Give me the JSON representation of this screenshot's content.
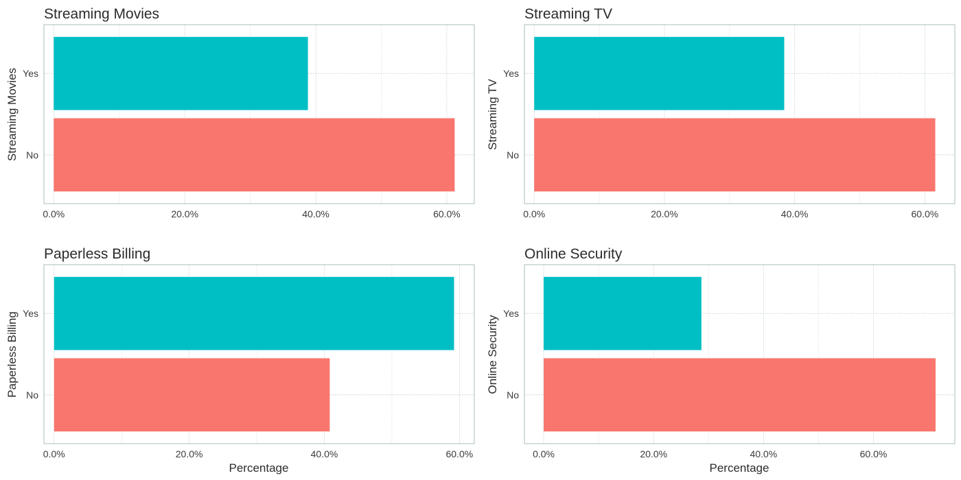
{
  "chart_data": [
    {
      "type": "bar",
      "orientation": "horizontal",
      "title": "Streaming Movies",
      "xlabel": "",
      "ylabel": "Streaming Movies",
      "categories": [
        "No",
        "Yes"
      ],
      "values": [
        61.2,
        38.8
      ],
      "colors": [
        "#F8766D",
        "#00BFC4"
      ],
      "xlim": [
        -1.5,
        64.2
      ],
      "xticks": [
        0,
        20,
        40,
        60
      ],
      "tick_labels": [
        "0.0%",
        "20.0%",
        "40.0%",
        "60.0%"
      ],
      "grid": true
    },
    {
      "type": "bar",
      "orientation": "horizontal",
      "title": "Streaming TV",
      "xlabel": "",
      "ylabel": "Streaming TV",
      "categories": [
        "No",
        "Yes"
      ],
      "values": [
        61.6,
        38.4
      ],
      "colors": [
        "#F8766D",
        "#00BFC4"
      ],
      "xlim": [
        -1.5,
        64.6
      ],
      "xticks": [
        0,
        20,
        40,
        60
      ],
      "tick_labels": [
        "0.0%",
        "20.0%",
        "40.0%",
        "60.0%"
      ],
      "grid": true
    },
    {
      "type": "bar",
      "orientation": "horizontal",
      "title": "Paperless Billing",
      "xlabel": "Percentage",
      "ylabel": "Paperless Billing",
      "categories": [
        "No",
        "Yes"
      ],
      "values": [
        40.8,
        59.2
      ],
      "colors": [
        "#F8766D",
        "#00BFC4"
      ],
      "xlim": [
        -1.5,
        62.2
      ],
      "xticks": [
        0,
        20,
        40,
        60
      ],
      "tick_labels": [
        "0.0%",
        "20.0%",
        "40.0%",
        "60.0%"
      ],
      "grid": true
    },
    {
      "type": "bar",
      "orientation": "horizontal",
      "title": "Online Security",
      "xlabel": "Percentage",
      "ylabel": "Online Security",
      "categories": [
        "No",
        "Yes"
      ],
      "values": [
        71.3,
        28.7
      ],
      "colors": [
        "#F8766D",
        "#00BFC4"
      ],
      "xlim": [
        -3.5,
        74.8
      ],
      "xticks": [
        0,
        20,
        40,
        60
      ],
      "tick_labels": [
        "0.0%",
        "20.0%",
        "40.0%",
        "60.0%"
      ],
      "grid": true
    }
  ]
}
